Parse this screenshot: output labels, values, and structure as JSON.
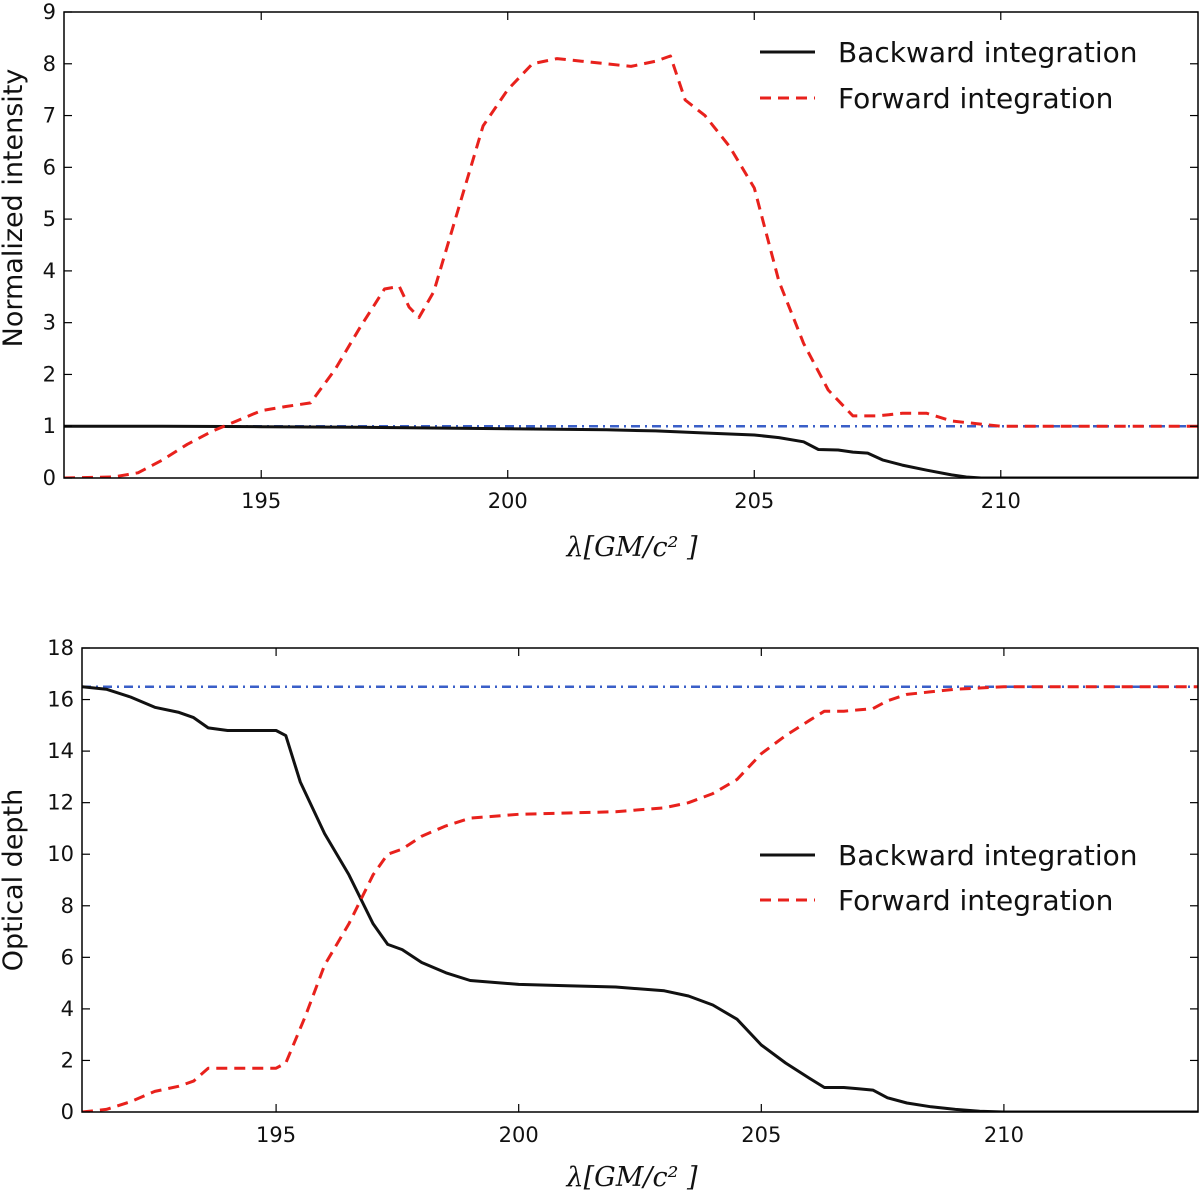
{
  "chart_data": [
    {
      "type": "line",
      "title": "",
      "xlabel": "λ[GM/c² ]",
      "ylabel": "Normalized intensity",
      "xlim": [
        191,
        214
      ],
      "ylim": [
        0,
        9
      ],
      "xticks": [
        "195",
        "200",
        "205",
        "210"
      ],
      "yticks": [
        "0",
        "1",
        "2",
        "3",
        "4",
        "5",
        "6",
        "7",
        "8",
        "9"
      ],
      "legend_position": "top-right",
      "series": [
        {
          "name": "Backward integration",
          "style": "solid",
          "color": "#111111",
          "x": [
            191,
            193,
            195,
            197,
            198,
            199,
            200,
            201,
            202,
            203,
            204,
            205,
            205.5,
            206,
            206.3,
            206.7,
            207,
            207.3,
            207.6,
            208,
            208.5,
            209,
            209.3,
            209.6,
            210,
            214
          ],
          "y": [
            1.0,
            1.0,
            0.99,
            0.98,
            0.97,
            0.96,
            0.95,
            0.94,
            0.93,
            0.91,
            0.87,
            0.83,
            0.78,
            0.7,
            0.55,
            0.54,
            0.5,
            0.48,
            0.35,
            0.25,
            0.15,
            0.06,
            0.02,
            0.0,
            0.0,
            0.0
          ]
        },
        {
          "name": "Forward integration",
          "style": "dashed",
          "color": "#e8211c",
          "x": [
            191,
            192,
            192.5,
            193,
            193.5,
            194,
            194.5,
            195,
            195.5,
            196,
            196.5,
            197,
            197.5,
            197.8,
            198,
            198.2,
            198.5,
            199,
            199.5,
            200,
            200.5,
            201,
            201.5,
            202,
            202.5,
            203,
            203.3,
            203.6,
            204,
            204.5,
            205,
            205.5,
            206,
            206.5,
            207,
            207.5,
            208,
            208.5,
            209,
            209.5,
            210,
            214
          ],
          "y": [
            0.0,
            0.02,
            0.1,
            0.35,
            0.65,
            0.9,
            1.1,
            1.3,
            1.38,
            1.45,
            2.1,
            2.9,
            3.65,
            3.7,
            3.3,
            3.1,
            3.6,
            5.2,
            6.8,
            7.5,
            8.0,
            8.1,
            8.05,
            8.0,
            7.95,
            8.05,
            8.15,
            7.3,
            7.0,
            6.4,
            5.6,
            3.8,
            2.6,
            1.7,
            1.2,
            1.2,
            1.25,
            1.25,
            1.1,
            1.05,
            1.0,
            1.0
          ]
        },
        {
          "name": "",
          "style": "dashdot",
          "color": "#3a5fc8",
          "x": [
            191,
            214
          ],
          "y": [
            1.0,
            1.0
          ]
        }
      ],
      "legend": [
        "Backward integration",
        "Forward integration"
      ]
    },
    {
      "type": "line",
      "title": "",
      "xlabel": "λ[GM/c² ]",
      "ylabel": "Optical depth",
      "xlim": [
        191,
        214
      ],
      "ylim": [
        0,
        18
      ],
      "xticks": [
        "195",
        "200",
        "205",
        "210"
      ],
      "yticks": [
        "0",
        "2",
        "4",
        "6",
        "8",
        "10",
        "12",
        "14",
        "16",
        "18"
      ],
      "legend_position": "center-right",
      "series": [
        {
          "name": "Backward integration",
          "style": "solid",
          "color": "#111111",
          "x": [
            191,
            191.5,
            192,
            192.5,
            193,
            193.3,
            193.6,
            194,
            194.5,
            195,
            195.2,
            195.5,
            196,
            196.5,
            197,
            197.3,
            197.6,
            198,
            198.5,
            199,
            200,
            201,
            202,
            203,
            203.5,
            204,
            204.5,
            205,
            205.5,
            206,
            206.3,
            206.7,
            207,
            207.3,
            207.6,
            208,
            208.5,
            209,
            209.5,
            210,
            214
          ],
          "y": [
            16.5,
            16.4,
            16.1,
            15.7,
            15.5,
            15.3,
            14.9,
            14.8,
            14.8,
            14.8,
            14.6,
            12.8,
            10.8,
            9.2,
            7.3,
            6.5,
            6.3,
            5.8,
            5.4,
            5.1,
            4.95,
            4.9,
            4.85,
            4.7,
            4.5,
            4.15,
            3.6,
            2.6,
            1.9,
            1.3,
            0.95,
            0.95,
            0.9,
            0.85,
            0.55,
            0.35,
            0.2,
            0.1,
            0.03,
            0.0,
            0.0
          ]
        },
        {
          "name": "Forward integration",
          "style": "dashed",
          "color": "#e8211c",
          "x": [
            191,
            191.5,
            192,
            192.5,
            193,
            193.3,
            193.6,
            194,
            194.5,
            195,
            195.2,
            195.6,
            196,
            196.5,
            197,
            197.3,
            197.6,
            198,
            198.5,
            199,
            200,
            201,
            202,
            203,
            203.5,
            204,
            204.5,
            205,
            205.5,
            206,
            206.3,
            206.7,
            207,
            207.3,
            207.6,
            208,
            208.5,
            209,
            209.5,
            210,
            214
          ],
          "y": [
            0.0,
            0.1,
            0.4,
            0.8,
            1.0,
            1.2,
            1.7,
            1.7,
            1.7,
            1.7,
            1.9,
            3.7,
            5.7,
            7.3,
            9.2,
            10.0,
            10.2,
            10.7,
            11.1,
            11.4,
            11.55,
            11.6,
            11.65,
            11.8,
            12.0,
            12.35,
            12.9,
            13.9,
            14.6,
            15.2,
            15.55,
            15.55,
            15.6,
            15.65,
            15.95,
            16.2,
            16.3,
            16.4,
            16.45,
            16.5,
            16.5
          ]
        },
        {
          "name": "",
          "style": "dashdot",
          "color": "#3a5fc8",
          "x": [
            191,
            214
          ],
          "y": [
            16.5,
            16.5
          ]
        }
      ],
      "legend": [
        "Backward integration",
        "Forward integration"
      ]
    }
  ]
}
